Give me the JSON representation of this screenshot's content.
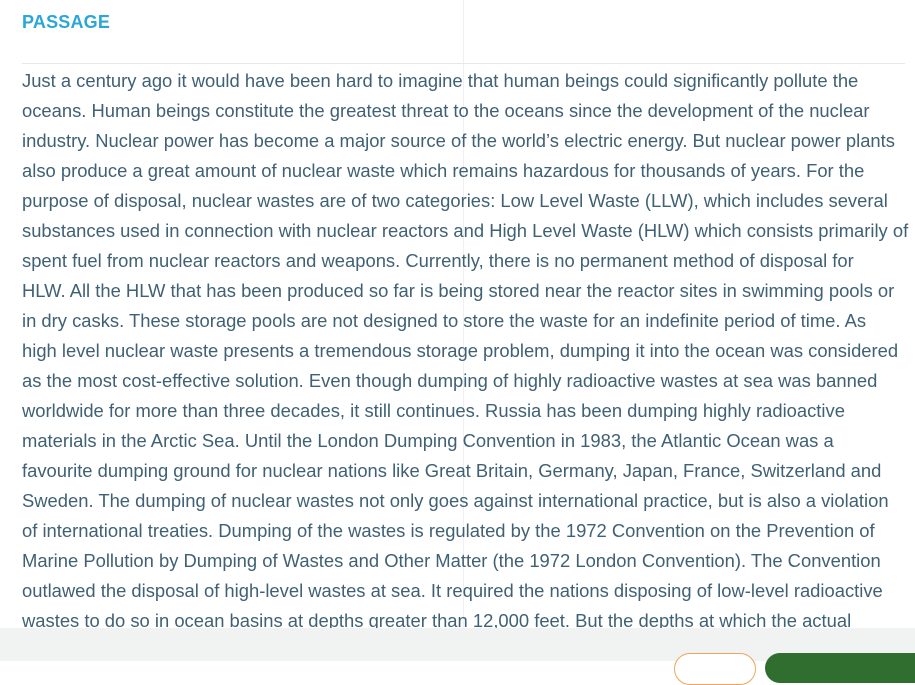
{
  "header": {
    "title": "PASSAGE"
  },
  "passage": {
    "lines": [
      "Just a century ago it would have been hard to imagine that human beings could significantly pollute the",
      "oceans. Human beings constitute the greatest threat to the oceans since the development of the nuclear",
      "industry. Nuclear power has become a major source of the world’s electric energy. But nuclear power plants",
      "also produce a great amount of nuclear waste which remains hazardous for thousands of years. For the",
      "purpose of disposal, nuclear wastes are of two categories: Low Level Waste (LLW), which includes several",
      "substances used in connection with nuclear reactors and High Level Waste (HLW) which consists primarily of",
      "spent fuel from nuclear reactors and weapons. Currently, there is no permanent method of disposal for",
      "HLW. All the HLW that has been produced so far is being stored near the reactor sites in swimming pools or",
      "in dry casks. These storage pools are not designed to store the waste for an indefinite period of time. As",
      "high level nuclear waste presents a tremendous storage problem, dumping it into the ocean was considered",
      "as the most cost-effective solution. Even though dumping of highly radioactive wastes at sea was banned",
      "worldwide for more than three decades, it still continues. Russia has been dumping highly radioactive",
      "materials in the Arctic Sea. Until the London Dumping Convention in 1983, the Atlantic Ocean was a",
      "favourite dumping ground for nuclear nations like Great Britain, Germany, Japan, France, Switzerland and",
      "Sweden. The dumping of nuclear wastes not only goes against international practice, but is also a violation",
      "of international treaties. Dumping of the wastes is regulated by the 1972 Convention on the Prevention of",
      "Marine Pollution by Dumping of Wastes and Other Matter (the 1972 London Convention). The Convention",
      "outlawed the disposal of high-level wastes at sea. It required the nations disposing of low-level radioactive",
      "wastes to do so in ocean basins at depths greater than 12,000 feet. But the depths at which the actual"
    ]
  }
}
